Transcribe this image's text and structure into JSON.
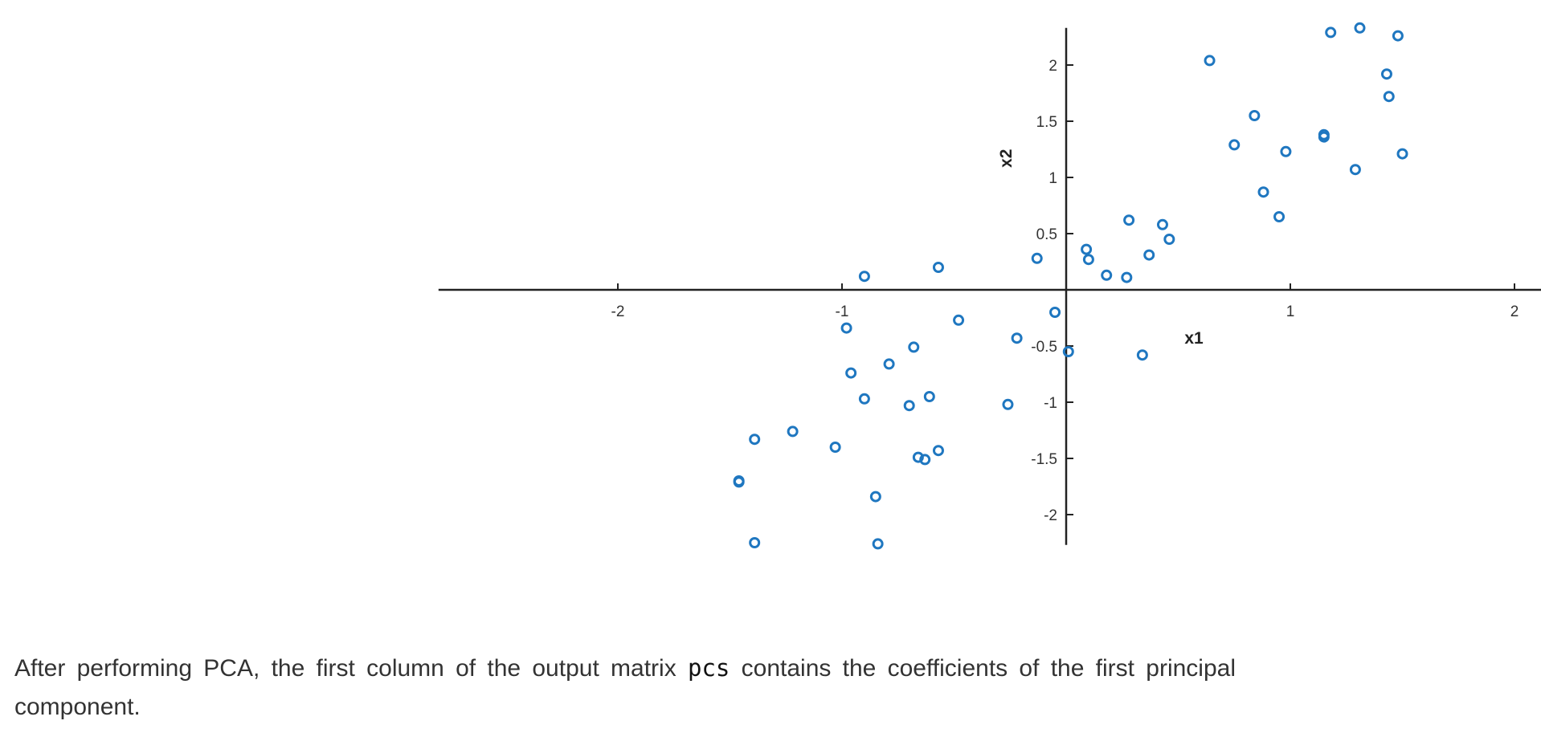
{
  "chart_data": {
    "type": "scatter",
    "title": "",
    "xlabel": "x1",
    "ylabel": "x2",
    "xlim": [
      -2.8,
      2.8
    ],
    "ylim": [
      -2.27,
      2.33
    ],
    "x_ticks": [
      {
        "value": -2,
        "label": "-2"
      },
      {
        "value": -1,
        "label": "-1"
      },
      {
        "value": 1,
        "label": "1"
      },
      {
        "value": 2,
        "label": "2"
      }
    ],
    "y_ticks": [
      {
        "value": -2,
        "label": "-2"
      },
      {
        "value": -1.5,
        "label": "-1.5"
      },
      {
        "value": -1,
        "label": "-1"
      },
      {
        "value": -0.5,
        "label": "-0.5"
      },
      {
        "value": 0.5,
        "label": "0.5"
      },
      {
        "value": 1,
        "label": "1"
      },
      {
        "value": 1.5,
        "label": "1.5"
      },
      {
        "value": 2,
        "label": "2"
      }
    ],
    "marker_color": "#1f77c0",
    "axis_color": "#222222",
    "points": [
      [
        1.18,
        2.29
      ],
      [
        1.31,
        2.33
      ],
      [
        1.48,
        2.26
      ],
      [
        0.64,
        2.04
      ],
      [
        1.43,
        1.92
      ],
      [
        1.44,
        1.72
      ],
      [
        0.84,
        1.55
      ],
      [
        1.15,
        1.38
      ],
      [
        1.15,
        1.36
      ],
      [
        0.75,
        1.29
      ],
      [
        0.98,
        1.23
      ],
      [
        1.5,
        1.21
      ],
      [
        1.29,
        1.07
      ],
      [
        0.88,
        0.87
      ],
      [
        0.95,
        0.65
      ],
      [
        0.28,
        0.62
      ],
      [
        0.43,
        0.58
      ],
      [
        0.46,
        0.45
      ],
      [
        0.09,
        0.36
      ],
      [
        0.37,
        0.31
      ],
      [
        -0.13,
        0.28
      ],
      [
        0.1,
        0.27
      ],
      [
        -0.57,
        0.2
      ],
      [
        0.18,
        0.13
      ],
      [
        0.27,
        0.11
      ],
      [
        -0.9,
        0.12
      ],
      [
        -0.05,
        -0.2
      ],
      [
        -0.48,
        -0.27
      ],
      [
        -0.98,
        -0.34
      ],
      [
        -0.22,
        -0.43
      ],
      [
        -0.68,
        -0.51
      ],
      [
        0.01,
        -0.55
      ],
      [
        0.34,
        -0.58
      ],
      [
        -0.79,
        -0.66
      ],
      [
        -0.96,
        -0.74
      ],
      [
        -0.9,
        -0.97
      ],
      [
        -0.61,
        -0.95
      ],
      [
        -0.7,
        -1.03
      ],
      [
        -0.26,
        -1.02
      ],
      [
        -1.22,
        -1.26
      ],
      [
        -1.39,
        -1.33
      ],
      [
        -1.03,
        -1.4
      ],
      [
        -0.57,
        -1.43
      ],
      [
        -0.66,
        -1.49
      ],
      [
        -0.63,
        -1.51
      ],
      [
        -1.46,
        -1.7
      ],
      [
        -1.46,
        -1.71
      ],
      [
        -0.85,
        -1.84
      ],
      [
        -1.39,
        -2.25
      ],
      [
        -0.84,
        -2.26
      ]
    ]
  },
  "caption": {
    "before": "After performing PCA, the first column of the output matrix ",
    "code": "pcs",
    "after": " contains the coefficients of the first principal component."
  }
}
